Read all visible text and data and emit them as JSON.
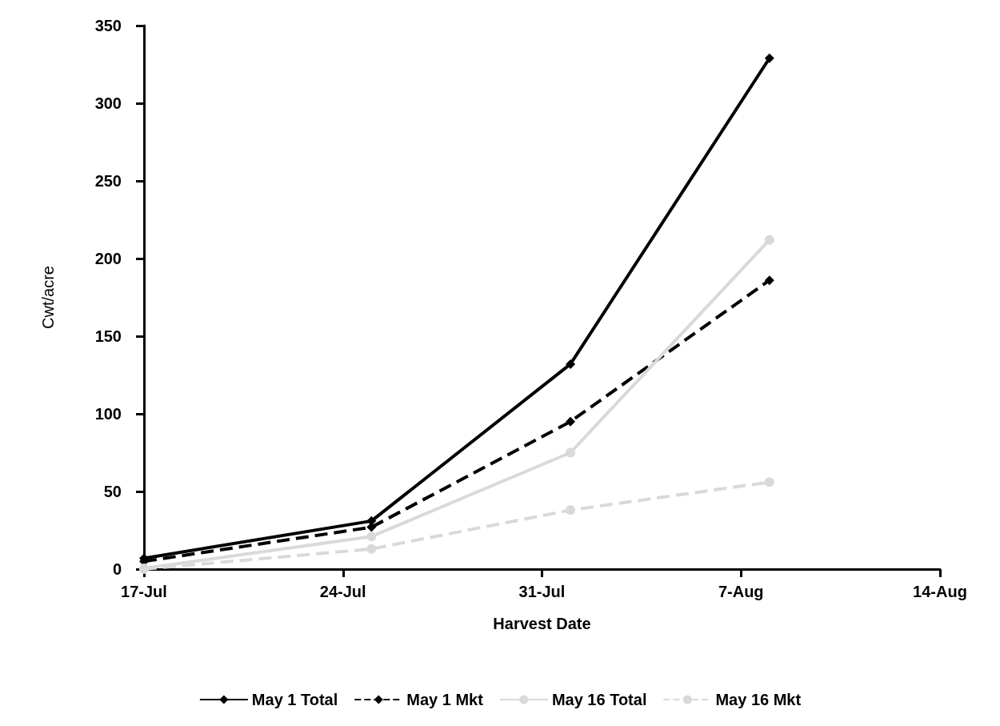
{
  "chart_data": {
    "type": "line",
    "xlabel": "Harvest Date",
    "ylabel": "Cwt/acre",
    "x": [
      "--07-17",
      "--07-25",
      "--08-01",
      "--08-08"
    ],
    "series": [
      {
        "name": "May 1 Total",
        "color": "#000000",
        "marker": "diamond",
        "line_style": "solid",
        "values": [
          7,
          31,
          132,
          329
        ]
      },
      {
        "name": "May 1 Mkt",
        "color": "#000000",
        "marker": "diamond",
        "line_style": "dashed",
        "values": [
          5,
          27,
          95,
          186
        ]
      },
      {
        "name": "May 16 Total",
        "color": "#d9d9d9",
        "marker": "circle",
        "line_style": "solid",
        "values": [
          0.5,
          21,
          75,
          212
        ]
      },
      {
        "name": "May 16 Mkt",
        "color": "#d9d9d9",
        "marker": "circle",
        "line_style": "dashed",
        "values": [
          0,
          13,
          38,
          56
        ]
      }
    ],
    "xlim": [
      "--07-17",
      "--08-14"
    ],
    "xticks": [
      {
        "value": "--07-17",
        "label": "17-Jul"
      },
      {
        "value": "--07-24",
        "label": "24-Jul"
      },
      {
        "value": "--07-31",
        "label": "31-Jul"
      },
      {
        "value": "--08-07",
        "label": "7-Aug"
      },
      {
        "value": "--08-14",
        "label": "14-Aug"
      }
    ],
    "ylim": [
      0,
      350
    ],
    "yticks": [
      0,
      50,
      100,
      150,
      200,
      250,
      300,
      350
    ],
    "grid": false,
    "legend": "bottom"
  }
}
